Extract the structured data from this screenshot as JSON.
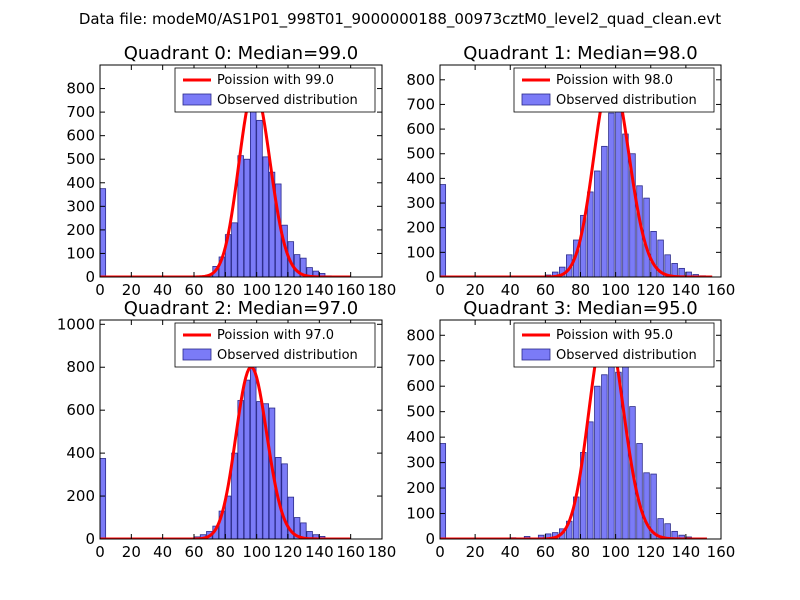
{
  "suptitle": "Data file: modeM0/AS1P01_998T01_9000000188_00973cztM0_level2_quad_clean.evt",
  "colors": {
    "hist_fill": "#7b7bf7",
    "hist_edge": "#2a2a8a",
    "poisson_line": "#ff0000"
  },
  "chart_data": [
    {
      "type": "bar",
      "title": "Quadrant 0: Median=99.0",
      "legend": [
        "Poission with 99.0",
        "Observed distribution"
      ],
      "legend_placement": "top-right",
      "xlim": [
        0,
        180
      ],
      "ylim": [
        0,
        900
      ],
      "xticks": [
        0,
        20,
        40,
        60,
        80,
        100,
        120,
        140,
        160,
        180
      ],
      "yticks": [
        0,
        100,
        200,
        300,
        400,
        500,
        600,
        700,
        800
      ],
      "bin_width": 3.6,
      "bins": [
        [
          0,
          375
        ],
        [
          64,
          3
        ],
        [
          68,
          8
        ],
        [
          72,
          45
        ],
        [
          76,
          85
        ],
        [
          80,
          180
        ],
        [
          84,
          230
        ],
        [
          88,
          515
        ],
        [
          92,
          500
        ],
        [
          96,
          750
        ],
        [
          100,
          665
        ],
        [
          104,
          510
        ],
        [
          108,
          445
        ],
        [
          112,
          395
        ],
        [
          116,
          220
        ],
        [
          120,
          150
        ],
        [
          124,
          95
        ],
        [
          128,
          80
        ],
        [
          132,
          40
        ],
        [
          136,
          25
        ],
        [
          140,
          15
        ],
        [
          144,
          5
        ],
        [
          148,
          2
        ]
      ],
      "poisson_mean": 99.0,
      "poisson_scale": 800,
      "curve_x_range": [
        0,
        160
      ]
    },
    {
      "type": "bar",
      "title": "Quadrant 1: Median=98.0",
      "legend": [
        "Poission with 98.0",
        "Observed distribution"
      ],
      "legend_placement": "top-right",
      "xlim": [
        0,
        160
      ],
      "ylim": [
        0,
        860
      ],
      "xticks": [
        0,
        20,
        40,
        60,
        80,
        100,
        120,
        140,
        160
      ],
      "yticks": [
        0,
        100,
        200,
        300,
        400,
        500,
        600,
        700,
        800
      ],
      "bin_width": 3.2,
      "bins": [
        [
          0,
          375
        ],
        [
          60,
          8
        ],
        [
          64,
          20
        ],
        [
          68,
          40
        ],
        [
          72,
          90
        ],
        [
          76,
          150
        ],
        [
          80,
          250
        ],
        [
          84,
          345
        ],
        [
          88,
          430
        ],
        [
          92,
          530
        ],
        [
          96,
          665
        ],
        [
          100,
          690
        ],
        [
          104,
          580
        ],
        [
          108,
          500
        ],
        [
          112,
          370
        ],
        [
          116,
          320
        ],
        [
          120,
          185
        ],
        [
          124,
          150
        ],
        [
          128,
          90
        ],
        [
          132,
          55
        ],
        [
          136,
          35
        ],
        [
          140,
          20
        ],
        [
          144,
          10
        ],
        [
          148,
          5
        ]
      ],
      "poisson_mean": 98.0,
      "poisson_scale": 820,
      "curve_x_range": [
        0,
        155
      ]
    },
    {
      "type": "bar",
      "title": "Quadrant 2: Median=97.0",
      "legend": [
        "Poission with 97.0",
        "Observed distribution"
      ],
      "legend_placement": "top-right",
      "xlim": [
        0,
        180
      ],
      "ylim": [
        0,
        1020
      ],
      "xticks": [
        0,
        20,
        40,
        60,
        80,
        100,
        120,
        140,
        160,
        180
      ],
      "yticks": [
        0,
        200,
        400,
        600,
        800,
        1000
      ],
      "bin_width": 3.6,
      "bins": [
        [
          0,
          375
        ],
        [
          60,
          10
        ],
        [
          64,
          20
        ],
        [
          68,
          35
        ],
        [
          72,
          60
        ],
        [
          76,
          130
        ],
        [
          80,
          200
        ],
        [
          84,
          400
        ],
        [
          88,
          645
        ],
        [
          92,
          740
        ],
        [
          96,
          815
        ],
        [
          100,
          640
        ],
        [
          104,
          630
        ],
        [
          108,
          610
        ],
        [
          112,
          380
        ],
        [
          116,
          350
        ],
        [
          120,
          195
        ],
        [
          124,
          100
        ],
        [
          128,
          75
        ],
        [
          132,
          35
        ],
        [
          136,
          20
        ],
        [
          140,
          12
        ],
        [
          144,
          5
        ],
        [
          148,
          3
        ],
        [
          152,
          2
        ]
      ],
      "poisson_mean": 97.0,
      "poisson_scale": 800,
      "curve_x_range": [
        0,
        160
      ]
    },
    {
      "type": "bar",
      "title": "Quadrant 3: Median=95.0",
      "legend": [
        "Poission with 95.0",
        "Observed distribution"
      ],
      "legend_placement": "top-right",
      "xlim": [
        0,
        160
      ],
      "ylim": [
        0,
        860
      ],
      "xticks": [
        0,
        20,
        40,
        60,
        80,
        100,
        120,
        140,
        160
      ],
      "yticks": [
        0,
        100,
        200,
        300,
        400,
        500,
        600,
        700,
        800
      ],
      "bin_width": 3.2,
      "bins": [
        [
          0,
          375
        ],
        [
          40,
          5
        ],
        [
          48,
          10
        ],
        [
          56,
          15
        ],
        [
          60,
          20
        ],
        [
          64,
          25
        ],
        [
          68,
          40
        ],
        [
          72,
          70
        ],
        [
          76,
          165
        ],
        [
          80,
          340
        ],
        [
          84,
          460
        ],
        [
          88,
          600
        ],
        [
          92,
          645
        ],
        [
          96,
          705
        ],
        [
          100,
          655
        ],
        [
          104,
          680
        ],
        [
          108,
          520
        ],
        [
          112,
          375
        ],
        [
          116,
          260
        ],
        [
          120,
          255
        ],
        [
          124,
          80
        ],
        [
          128,
          60
        ],
        [
          132,
          30
        ],
        [
          136,
          15
        ],
        [
          140,
          8
        ],
        [
          144,
          3
        ]
      ],
      "poisson_mean": 95.0,
      "poisson_scale": 840,
      "curve_x_range": [
        0,
        152
      ]
    }
  ]
}
